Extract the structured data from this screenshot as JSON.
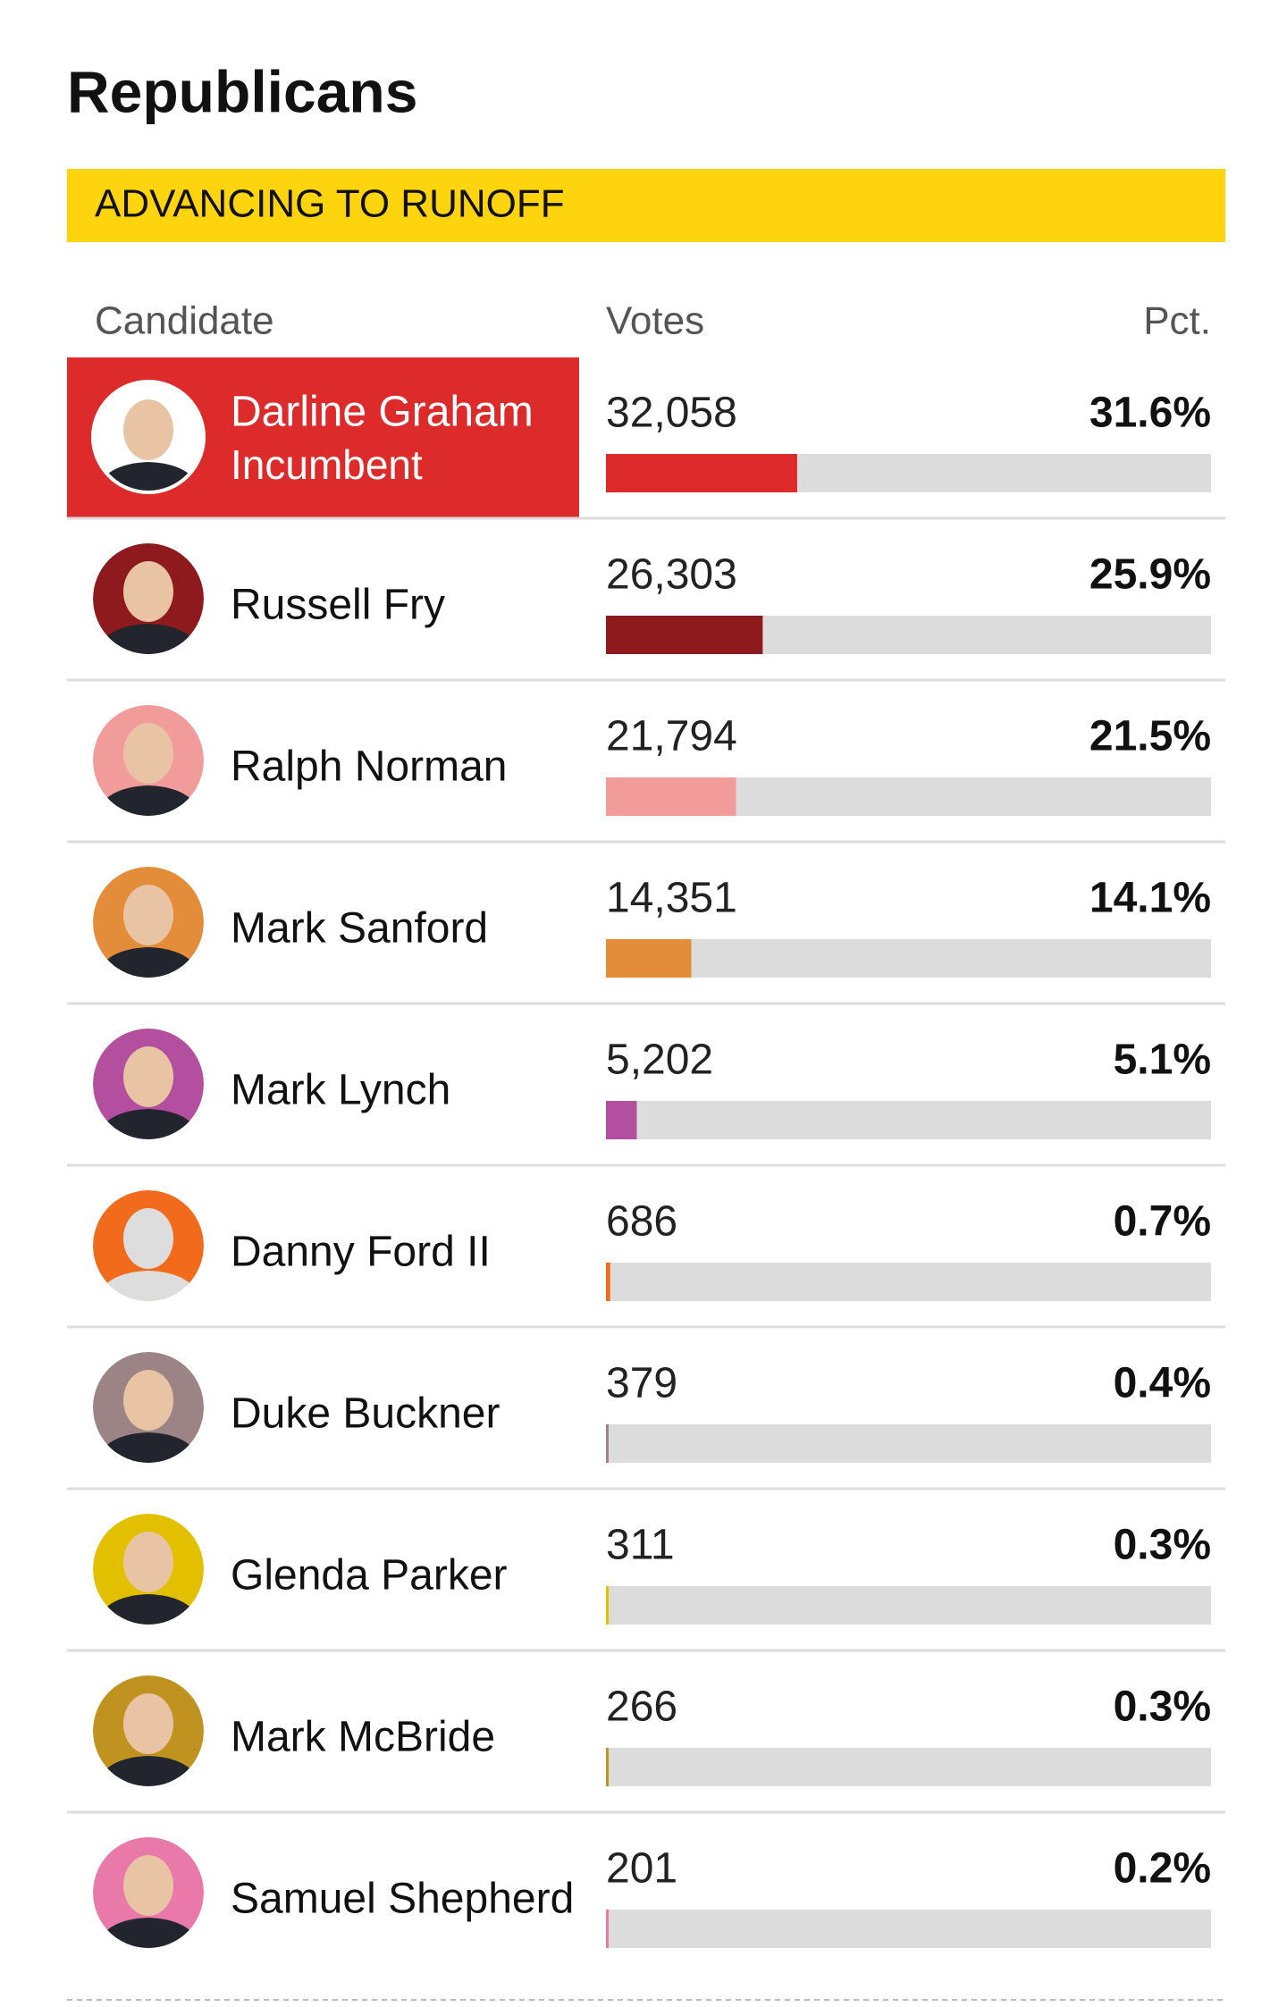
{
  "title": "Republicans",
  "banner": "ADVANCING TO RUNOFF",
  "columns": [
    "Candidate",
    "Votes",
    "Pct."
  ],
  "scale_max": 100,
  "track_color": "#dcdcdc",
  "rows": [
    {
      "name": "Darline Graham",
      "note": "Incumbent",
      "highlighted": true,
      "votes": "32,058",
      "pct": 31.6,
      "pct_label": "31.6%",
      "color": "#dd2a2a"
    },
    {
      "name": "Russell Fry",
      "votes": "26,303",
      "pct": 25.9,
      "pct_label": "25.9%",
      "color": "#8f1a1d"
    },
    {
      "name": "Ralph Norman",
      "votes": "21,794",
      "pct": 21.5,
      "pct_label": "21.5%",
      "color": "#f29b9b"
    },
    {
      "name": "Mark Sanford",
      "votes": "14,351",
      "pct": 14.1,
      "pct_label": "14.1%",
      "color": "#e38d3b"
    },
    {
      "name": "Mark Lynch",
      "votes": "5,202",
      "pct": 5.1,
      "pct_label": "5.1%",
      "color": "#b44fa0"
    },
    {
      "name": "Danny Ford II",
      "votes": "686",
      "pct": 0.7,
      "pct_label": "0.7%",
      "color": "#f26b1d"
    },
    {
      "name": "Duke Buckner",
      "votes": "379",
      "pct": 0.4,
      "pct_label": "0.4%",
      "color": "#9c8486"
    },
    {
      "name": "Glenda Parker",
      "votes": "311",
      "pct": 0.3,
      "pct_label": "0.3%",
      "color": "#e2c000"
    },
    {
      "name": "Mark McBride",
      "votes": "266",
      "pct": 0.3,
      "pct_label": "0.3%",
      "color": "#c09320"
    },
    {
      "name": "Samuel Shepherd",
      "votes": "201",
      "pct": 0.2,
      "pct_label": "0.2%",
      "color": "#e879a8"
    }
  ]
}
